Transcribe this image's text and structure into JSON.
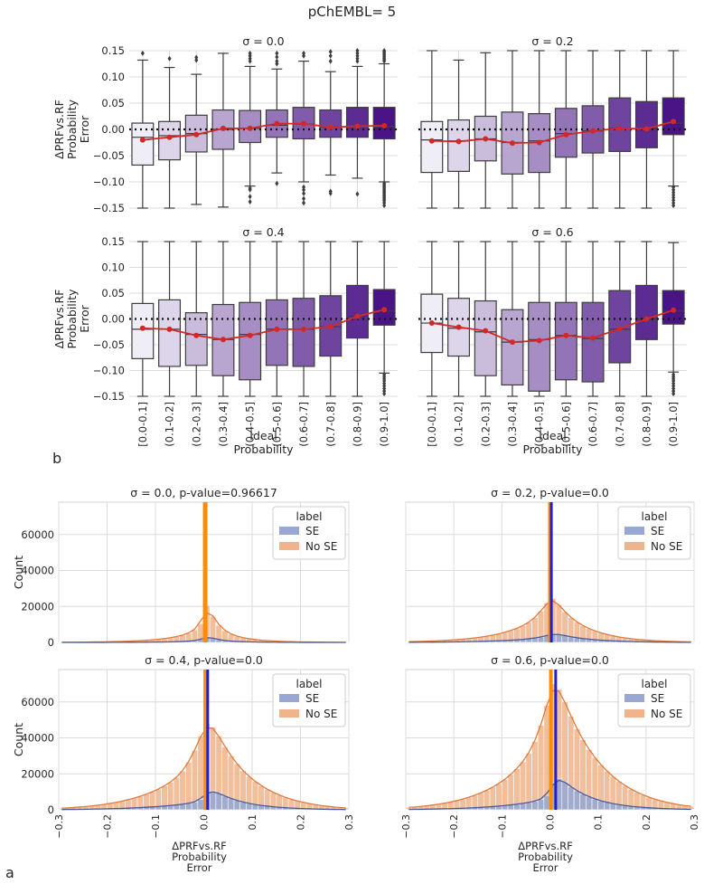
{
  "suptitle": "pChEMBL= 5",
  "panel_labels": {
    "b": "b",
    "a": "a"
  },
  "chart_data": [
    {
      "type": "box",
      "panel": "b",
      "title": "σ = 0.0",
      "categories": [
        "[0.0-0.1]",
        "(0.1-0.2]",
        "(0.2-0.3]",
        "(0.3-0.4]",
        "(0.4-0.5]",
        "(0.5-0.6]",
        "(0.6-0.7]",
        "(0.7-0.8]",
        "(0.8-0.9]",
        "(0.9-1.0]"
      ],
      "q1": [
        -0.068,
        -0.058,
        -0.043,
        -0.038,
        -0.025,
        -0.015,
        -0.018,
        -0.015,
        -0.015,
        -0.018
      ],
      "q3": [
        0.012,
        0.015,
        0.027,
        0.037,
        0.036,
        0.037,
        0.042,
        0.037,
        0.042,
        0.042
      ],
      "median": [
        -0.015,
        -0.012,
        -0.008,
        0.0,
        0.002,
        0.008,
        0.01,
        0.005,
        0.006,
        0.005
      ],
      "whisker_low": [
        -0.15,
        -0.15,
        -0.143,
        -0.148,
        -0.108,
        -0.083,
        -0.1,
        -0.087,
        -0.093,
        -0.1
      ],
      "whisker_high": [
        0.132,
        0.118,
        0.105,
        0.145,
        0.12,
        0.115,
        0.13,
        0.11,
        0.12,
        0.125
      ],
      "mean": [
        -0.02,
        -0.015,
        -0.01,
        0.002,
        0.002,
        0.011,
        0.011,
        0.004,
        0.006,
        0.007
      ],
      "outliers_high": [
        [
          0.145
        ],
        [
          0.135
        ],
        [
          0.132,
          0.137
        ],
        [],
        [
          0.13,
          0.135,
          0.14,
          0.145
        ],
        [
          0.125,
          0.13,
          0.138,
          0.145
        ],
        [
          0.14,
          0.145
        ],
        [
          0.13,
          0.14,
          0.148
        ],
        [
          0.13,
          0.135,
          0.14,
          0.145,
          0.15
        ],
        [
          0.13,
          0.133,
          0.136,
          0.139,
          0.142,
          0.145,
          0.148,
          0.15
        ]
      ],
      "outliers_low": [
        [],
        [],
        [],
        [],
        [
          -0.112,
          -0.115,
          -0.128,
          -0.138
        ],
        [
          -0.103
        ],
        [
          -0.11,
          -0.115,
          -0.122,
          -0.132,
          -0.14
        ],
        [
          -0.118,
          -0.122
        ],
        [
          -0.123
        ],
        [
          -0.103,
          -0.106,
          -0.109,
          -0.112,
          -0.115,
          -0.118,
          -0.121,
          -0.124,
          -0.127,
          -0.13,
          -0.133,
          -0.136,
          -0.14,
          -0.145
        ]
      ],
      "ylim": [
        -0.15,
        0.15
      ],
      "yticks": [
        -0.15,
        -0.1,
        -0.05,
        0.0,
        0.05,
        0.1,
        0.15
      ],
      "ylabel": [
        "ΔPRFvs.RF",
        "Probability",
        "Error"
      ],
      "xlabel": ""
    },
    {
      "type": "box",
      "panel": "b",
      "title": "σ = 0.2",
      "categories": [
        "[0.0-0.1]",
        "(0.1-0.2]",
        "(0.2-0.3]",
        "(0.3-0.4]",
        "(0.4-0.5]",
        "(0.5-0.6]",
        "(0.6-0.7]",
        "(0.7-0.8]",
        "(0.8-0.9]",
        "(0.9-1.0]"
      ],
      "q1": [
        -0.082,
        -0.08,
        -0.06,
        -0.085,
        -0.082,
        -0.053,
        -0.045,
        -0.042,
        -0.035,
        -0.01
      ],
      "q3": [
        0.015,
        0.018,
        0.025,
        0.033,
        0.03,
        0.04,
        0.045,
        0.06,
        0.053,
        0.06
      ],
      "median": [
        -0.02,
        -0.022,
        -0.018,
        -0.025,
        -0.022,
        -0.008,
        -0.003,
        0.002,
        0.002,
        0.012
      ],
      "whisker_low": [
        -0.15,
        -0.15,
        -0.15,
        -0.15,
        -0.15,
        -0.15,
        -0.15,
        -0.15,
        -0.15,
        -0.108
      ],
      "whisker_high": [
        0.15,
        0.132,
        0.146,
        0.15,
        0.15,
        0.15,
        0.15,
        0.15,
        0.15,
        0.15
      ],
      "mean": [
        -0.022,
        -0.023,
        -0.018,
        -0.026,
        -0.025,
        -0.01,
        -0.003,
        0.002,
        0.001,
        0.015
      ],
      "outliers_high": [
        [],
        [],
        [],
        [],
        [],
        [],
        [],
        [],
        [],
        []
      ],
      "outliers_low": [
        [],
        [],
        [],
        [],
        [],
        [],
        [],
        [],
        [],
        [
          -0.11,
          -0.115,
          -0.12,
          -0.125,
          -0.13,
          -0.135,
          -0.14,
          -0.145
        ]
      ],
      "ylim": [
        -0.15,
        0.15
      ],
      "yticks": [
        -0.15,
        -0.1,
        -0.05,
        0.0,
        0.05,
        0.1,
        0.15
      ],
      "ylabel": [],
      "xlabel": ""
    },
    {
      "type": "box",
      "panel": "b",
      "title": "σ = 0.4",
      "categories": [
        "[0.0-0.1]",
        "(0.1-0.2]",
        "(0.2-0.3]",
        "(0.3-0.4]",
        "(0.4-0.5]",
        "(0.5-0.6]",
        "(0.6-0.7]",
        "(0.7-0.8]",
        "(0.8-0.9]",
        "(0.9-1.0]"
      ],
      "q1": [
        -0.077,
        -0.092,
        -0.09,
        -0.11,
        -0.118,
        -0.09,
        -0.092,
        -0.072,
        -0.037,
        -0.012
      ],
      "q3": [
        0.03,
        0.037,
        0.012,
        0.028,
        0.032,
        0.037,
        0.04,
        0.045,
        0.065,
        0.057
      ],
      "median": [
        -0.02,
        -0.02,
        -0.03,
        -0.04,
        -0.03,
        -0.02,
        -0.02,
        -0.015,
        0.005,
        0.015
      ],
      "whisker_low": [
        -0.15,
        -0.15,
        -0.15,
        -0.15,
        -0.15,
        -0.15,
        -0.15,
        -0.15,
        -0.15,
        -0.105
      ],
      "whisker_high": [
        0.15,
        0.15,
        0.15,
        0.15,
        0.15,
        0.15,
        0.15,
        0.15,
        0.15,
        0.15
      ],
      "mean": [
        -0.018,
        -0.02,
        -0.032,
        -0.04,
        -0.032,
        -0.02,
        -0.02,
        -0.015,
        0.005,
        0.018
      ],
      "outliers_high": [
        [],
        [],
        [],
        [],
        [],
        [],
        [],
        [],
        [],
        []
      ],
      "outliers_low": [
        [],
        [],
        [],
        [],
        [],
        [],
        [],
        [],
        [],
        [
          -0.108,
          -0.112,
          -0.116,
          -0.12,
          -0.125,
          -0.13,
          -0.135,
          -0.14,
          -0.145
        ]
      ],
      "ylim": [
        -0.15,
        0.15
      ],
      "yticks": [
        -0.15,
        -0.1,
        -0.05,
        0.0,
        0.05,
        0.1,
        0.15
      ],
      "ylabel": [
        "ΔPRFvs.RF",
        "Probability",
        "Error"
      ],
      "xlabel": "Ideal\nProbability"
    },
    {
      "type": "box",
      "panel": "b",
      "title": "σ = 0.6",
      "categories": [
        "[0.0-0.1]",
        "(0.1-0.2]",
        "(0.2-0.3]",
        "(0.3-0.4]",
        "(0.4-0.5]",
        "(0.5-0.6]",
        "(0.6-0.7]",
        "(0.7-0.8]",
        "(0.8-0.9]",
        "(0.9-1.0]"
      ],
      "q1": [
        -0.065,
        -0.072,
        -0.11,
        -0.128,
        -0.14,
        -0.118,
        -0.122,
        -0.085,
        -0.04,
        -0.01
      ],
      "q3": [
        0.048,
        0.04,
        0.035,
        0.018,
        0.032,
        0.032,
        0.032,
        0.055,
        0.065,
        0.055
      ],
      "median": [
        -0.008,
        -0.018,
        -0.025,
        -0.045,
        -0.04,
        -0.032,
        -0.038,
        -0.02,
        0.0,
        0.015
      ],
      "whisker_low": [
        -0.15,
        -0.15,
        -0.15,
        -0.15,
        -0.15,
        -0.15,
        -0.15,
        -0.15,
        -0.15,
        -0.103
      ],
      "whisker_high": [
        0.15,
        0.15,
        0.15,
        0.15,
        0.15,
        0.15,
        0.15,
        0.15,
        0.15,
        0.148
      ],
      "mean": [
        -0.008,
        -0.016,
        -0.023,
        -0.045,
        -0.042,
        -0.032,
        -0.037,
        -0.019,
        0.0,
        0.017
      ],
      "outliers_high": [
        [],
        [],
        [],
        [],
        [],
        [],
        [],
        [],
        [],
        []
      ],
      "outliers_low": [
        [],
        [],
        [],
        [],
        [],
        [],
        [],
        [],
        [],
        [
          -0.108,
          -0.112,
          -0.116,
          -0.12,
          -0.125,
          -0.13,
          -0.135,
          -0.14,
          -0.145
        ]
      ],
      "ylim": [
        -0.15,
        0.15
      ],
      "yticks": [
        -0.15,
        -0.1,
        -0.05,
        0.0,
        0.05,
        0.1,
        0.15
      ],
      "ylabel": [],
      "xlabel": "Ideal\nProbability"
    },
    {
      "type": "histogram",
      "panel": "a",
      "title": "σ = 0.0, p-value=0.96617",
      "bin_range": [
        -0.3,
        0.3
      ],
      "n_bins": 48,
      "no_se_counts": [
        80,
        100,
        120,
        150,
        180,
        220,
        270,
        330,
        400,
        480,
        580,
        700,
        850,
        1000,
        1200,
        1450,
        1750,
        2100,
        2600,
        3200,
        4000,
        5200,
        7000,
        10500,
        20500,
        14500,
        9500,
        6500,
        4600,
        3400,
        2600,
        2000,
        1600,
        1250,
        1000,
        800,
        640,
        510,
        400,
        320,
        260,
        210,
        170,
        140,
        110,
        90,
        75,
        60
      ],
      "se_counts": [
        10,
        12,
        15,
        18,
        22,
        27,
        33,
        40,
        48,
        58,
        70,
        85,
        100,
        120,
        145,
        175,
        210,
        260,
        320,
        400,
        520,
        700,
        1000,
        1600,
        3200,
        2400,
        1500,
        1000,
        700,
        520,
        400,
        310,
        240,
        190,
        150,
        120,
        95,
        75,
        60,
        48,
        38,
        30,
        24,
        19,
        15,
        12,
        10,
        8
      ],
      "se_mean_line": 0.004,
      "no_se_mean_line": 0.002,
      "ylim": [
        0,
        78000
      ],
      "yticks": [
        0,
        20000,
        40000,
        60000
      ],
      "xticks": [
        -0.3,
        -0.2,
        -0.1,
        0.0,
        0.1,
        0.2,
        0.3
      ],
      "ylabel": "Count",
      "xlabel": "",
      "legend": {
        "title": "label",
        "entries": [
          "SE",
          "No SE"
        ]
      }
    },
    {
      "type": "histogram",
      "panel": "a",
      "title": "σ = 0.2, p-value=0.0",
      "bin_range": [
        -0.3,
        0.3
      ],
      "n_bins": 48,
      "no_se_counts": [
        400,
        480,
        570,
        680,
        800,
        950,
        1120,
        1320,
        1550,
        1820,
        2130,
        2500,
        2950,
        3450,
        4050,
        4750,
        5600,
        6600,
        7800,
        9300,
        11200,
        13700,
        17500,
        22000,
        24500,
        21000,
        17000,
        13800,
        11300,
        9300,
        7700,
        6400,
        5300,
        4400,
        3650,
        3000,
        2500,
        2050,
        1700,
        1400,
        1150,
        950,
        780,
        640,
        530,
        440,
        360,
        300
      ],
      "se_counts": [
        80,
        95,
        115,
        135,
        160,
        190,
        225,
        265,
        310,
        365,
        430,
        505,
        590,
        690,
        800,
        930,
        1080,
        1250,
        1450,
        1700,
        2000,
        2450,
        3000,
        3800,
        4800,
        4500,
        3800,
        3100,
        2600,
        2150,
        1800,
        1500,
        1250,
        1040,
        860,
        710,
        590,
        490,
        400,
        330,
        270,
        220,
        180,
        150,
        120,
        100,
        80,
        65
      ],
      "se_mean_line": 0.003,
      "no_se_mean_line": 0.0,
      "ylim": [
        0,
        78000
      ],
      "yticks": [
        0,
        20000,
        40000,
        60000
      ],
      "xticks": [
        -0.3,
        -0.2,
        -0.1,
        0.0,
        0.1,
        0.2,
        0.3
      ],
      "ylabel": "",
      "xlabel": "",
      "legend": {
        "title": "label",
        "entries": [
          "SE",
          "No SE"
        ]
      }
    },
    {
      "type": "histogram",
      "panel": "a",
      "title": "σ = 0.4, p-value=0.0",
      "bin_range": [
        -0.3,
        0.3
      ],
      "n_bins": 48,
      "no_se_counts": [
        900,
        1080,
        1290,
        1540,
        1830,
        2170,
        2560,
        3010,
        3530,
        4130,
        4810,
        5600,
        6500,
        7520,
        8700,
        10000,
        11500,
        13300,
        15400,
        18000,
        21500,
        26500,
        33000,
        41000,
        48000,
        46000,
        41000,
        35000,
        30000,
        25500,
        21700,
        18500,
        15800,
        13400,
        11400,
        9700,
        8200,
        6900,
        5800,
        4900,
        4100,
        3400,
        2800,
        2300,
        1900,
        1550,
        1250,
        1000
      ],
      "se_counts": [
        150,
        180,
        215,
        255,
        305,
        360,
        425,
        500,
        585,
        680,
        790,
        915,
        1060,
        1220,
        1400,
        1600,
        1830,
        2090,
        2380,
        2720,
        3120,
        3620,
        4300,
        5800,
        10000,
        10500,
        9200,
        7600,
        6300,
        5200,
        4300,
        3550,
        2950,
        2450,
        2030,
        1680,
        1390,
        1150,
        950,
        780,
        640,
        520,
        420,
        340,
        280,
        225,
        180,
        145
      ],
      "se_mean_line": 0.008,
      "no_se_mean_line": 0.003,
      "ylim": [
        0,
        78000
      ],
      "yticks": [
        0,
        20000,
        40000,
        60000
      ],
      "xticks": [
        -0.3,
        -0.2,
        -0.1,
        0.0,
        0.1,
        0.2,
        0.3
      ],
      "ylabel": "Count",
      "xlabel": "ΔPRFvs.RF\nProbability\nError",
      "legend": {
        "title": "label",
        "entries": [
          "SE",
          "No SE"
        ]
      }
    },
    {
      "type": "histogram",
      "panel": "a",
      "title": "σ = 0.6, p-value=0.0",
      "bin_range": [
        -0.3,
        0.3
      ],
      "n_bins": 48,
      "no_se_counts": [
        1300,
        1560,
        1870,
        2230,
        2650,
        3140,
        3700,
        4350,
        5100,
        5950,
        6950,
        8100,
        9400,
        10900,
        12600,
        14600,
        16900,
        19600,
        22800,
        26700,
        31500,
        38000,
        47000,
        58000,
        70000,
        67000,
        60000,
        52000,
        45000,
        39000,
        33500,
        29000,
        25000,
        21500,
        18500,
        15800,
        13500,
        11500,
        9800,
        8300,
        7000,
        5900,
        4900,
        4100,
        3400,
        2800,
        2300,
        1900
      ],
      "se_counts": [
        200,
        240,
        285,
        340,
        400,
        470,
        550,
        640,
        745,
        865,
        1000,
        1160,
        1340,
        1550,
        1790,
        2060,
        2370,
        2720,
        3120,
        3580,
        4120,
        4800,
        5800,
        8000,
        15000,
        17500,
        15500,
        12800,
        10600,
        8800,
        7300,
        6050,
        5000,
        4150,
        3440,
        2850,
        2360,
        1950,
        1610,
        1330,
        1100,
        900,
        740,
        600,
        490,
        400,
        325,
        265
      ],
      "se_mean_line": 0.012,
      "no_se_mean_line": 0.002,
      "ylim": [
        0,
        78000
      ],
      "yticks": [
        0,
        20000,
        40000,
        60000
      ],
      "xticks": [
        -0.3,
        -0.2,
        -0.1,
        0.0,
        0.1,
        0.2,
        0.3
      ],
      "ylabel": "",
      "xlabel": "ΔPRFvs.RF\nProbability\nError",
      "legend": {
        "title": "label",
        "entries": [
          "SE",
          "No SE"
        ]
      }
    }
  ],
  "colors": {
    "grid": "#dcdcdc",
    "text": "#262626",
    "box_light": "#efedf5",
    "box_dark": "#4a1486",
    "mean_line": "#d62728",
    "no_se_bar": "#f0b48c",
    "no_se_line": "#e07a3b",
    "se_bar": "#98a8d2",
    "se_line": "#4c5a9c",
    "no_se_vline": "#ff8c00",
    "se_vline": "#1f1fd6"
  }
}
